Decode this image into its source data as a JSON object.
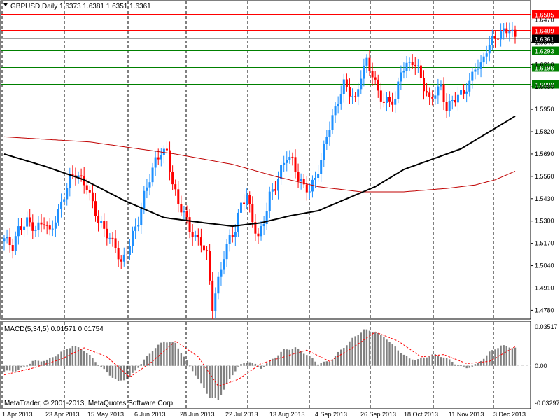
{
  "header": {
    "symbol_line": "GBPUSD,Daily  1.6373 1.6381 1.6351 1.6361",
    "macd_label": "MACD(5,34,5) 0.01571 0.01754",
    "copyright": "MetaTrader, © 2001-2013, MetaQuotes Software Corp."
  },
  "colors": {
    "bull": "#1e90ff",
    "bear": "#ff0000",
    "ma_fast": "#000000",
    "ma_slow": "#c00000",
    "resistance": "#ff0000",
    "support": "#008000",
    "macd_hist": "#808080",
    "macd_signal": "#ff0000"
  },
  "chart_data": [
    {
      "type": "candlestick",
      "title": "GBPUSD,Daily",
      "ylim": [
        1.4745,
        1.6545
      ],
      "y_ticks": [
        "1.6470",
        "1.6340",
        "1.6210",
        "1.6080",
        "1.5950",
        "1.5820",
        "1.5690",
        "1.5560",
        "1.5430",
        "1.5300",
        "1.5170",
        "1.5040",
        "1.4910",
        "1.4780"
      ],
      "x_labels": [
        "1 Apr 2013",
        "23 Apr 2013",
        "15 May 2013",
        "6 Jun 2013",
        "28 Jun 2013",
        "22 Jul 2013",
        "13 Aug 2013",
        "4 Sep 2013",
        "26 Sep 2013",
        "18 Oct 2013",
        "11 Nov 2013",
        "3 Dec 2013"
      ],
      "current_price": "1.6361",
      "levels": [
        {
          "value": 1.6505,
          "label": "1.6505",
          "kind": "resistance"
        },
        {
          "value": 1.6409,
          "label": "1.6409",
          "kind": "resistance"
        },
        {
          "value": 1.6293,
          "label": "1.6293",
          "kind": "support"
        },
        {
          "value": 1.6196,
          "label": "1.6196",
          "kind": "support"
        },
        {
          "value": 1.6098,
          "label": "1.6098",
          "kind": "support"
        }
      ],
      "close_path": [
        [
          0,
          1.52
        ],
        [
          3,
          1.515
        ],
        [
          5,
          1.525
        ],
        [
          8,
          1.53
        ],
        [
          11,
          1.525
        ],
        [
          14,
          1.53
        ],
        [
          16,
          1.523
        ],
        [
          19,
          1.535
        ],
        [
          21,
          1.545
        ],
        [
          23,
          1.555
        ],
        [
          25,
          1.558
        ],
        [
          27,
          1.554
        ],
        [
          29,
          1.55
        ],
        [
          31,
          1.54
        ],
        [
          33,
          1.53
        ],
        [
          35,
          1.525
        ],
        [
          37,
          1.52
        ],
        [
          39,
          1.515
        ],
        [
          41,
          1.505
        ],
        [
          43,
          1.512
        ],
        [
          45,
          1.522
        ],
        [
          47,
          1.53
        ],
        [
          49,
          1.545
        ],
        [
          51,
          1.555
        ],
        [
          53,
          1.565
        ],
        [
          55,
          1.57
        ],
        [
          57,
          1.57
        ],
        [
          59,
          1.552
        ],
        [
          61,
          1.54
        ],
        [
          63,
          1.535
        ],
        [
          65,
          1.525
        ],
        [
          67,
          1.52
        ],
        [
          69,
          1.518
        ],
        [
          71,
          1.51
        ],
        [
          73,
          1.48
        ],
        [
          75,
          1.495
        ],
        [
          77,
          1.51
        ],
        [
          79,
          1.52
        ],
        [
          81,
          1.525
        ],
        [
          83,
          1.54
        ],
        [
          85,
          1.545
        ],
        [
          87,
          1.53
        ],
        [
          89,
          1.52
        ],
        [
          91,
          1.53
        ],
        [
          93,
          1.545
        ],
        [
          95,
          1.55
        ],
        [
          97,
          1.56
        ],
        [
          99,
          1.568
        ],
        [
          101,
          1.565
        ],
        [
          103,
          1.555
        ],
        [
          105,
          1.55
        ],
        [
          107,
          1.548
        ],
        [
          109,
          1.555
        ],
        [
          111,
          1.565
        ],
        [
          113,
          1.58
        ],
        [
          115,
          1.59
        ],
        [
          117,
          1.6
        ],
        [
          119,
          1.61
        ],
        [
          121,
          1.605
        ],
        [
          123,
          1.6
        ],
        [
          125,
          1.615
        ],
        [
          127,
          1.623
        ],
        [
          129,
          1.615
        ],
        [
          131,
          1.605
        ],
        [
          133,
          1.599
        ],
        [
          135,
          1.6
        ],
        [
          137,
          1.6
        ],
        [
          139,
          1.618
        ],
        [
          141,
          1.62
        ],
        [
          143,
          1.623
        ],
        [
          145,
          1.618
        ],
        [
          147,
          1.608
        ],
        [
          149,
          1.6
        ],
        [
          151,
          1.605
        ],
        [
          153,
          1.608
        ],
        [
          155,
          1.595
        ],
        [
          157,
          1.6
        ],
        [
          159,
          1.603
        ],
        [
          161,
          1.605
        ],
        [
          163,
          1.61
        ],
        [
          165,
          1.62
        ],
        [
          167,
          1.62
        ],
        [
          169,
          1.63
        ],
        [
          171,
          1.635
        ],
        [
          173,
          1.638
        ],
        [
          175,
          1.64
        ],
        [
          177,
          1.642
        ],
        [
          179,
          1.6361
        ]
      ],
      "ma_fast_path": [
        [
          0,
          1.569
        ],
        [
          14,
          1.562
        ],
        [
          28,
          1.554
        ],
        [
          42,
          1.542
        ],
        [
          56,
          1.532
        ],
        [
          70,
          1.529
        ],
        [
          80,
          1.527
        ],
        [
          90,
          1.529
        ],
        [
          100,
          1.533
        ],
        [
          110,
          1.536
        ],
        [
          120,
          1.543
        ],
        [
          130,
          1.55
        ],
        [
          140,
          1.56
        ],
        [
          150,
          1.566
        ],
        [
          160,
          1.572
        ],
        [
          170,
          1.582
        ],
        [
          179,
          1.591
        ]
      ],
      "ma_slow_path": [
        [
          0,
          1.579
        ],
        [
          30,
          1.576
        ],
        [
          60,
          1.569
        ],
        [
          80,
          1.563
        ],
        [
          95,
          1.556
        ],
        [
          110,
          1.55
        ],
        [
          125,
          1.547
        ],
        [
          140,
          1.547
        ],
        [
          155,
          1.549
        ],
        [
          165,
          1.551
        ],
        [
          172,
          1.554
        ],
        [
          179,
          1.559
        ]
      ]
    },
    {
      "type": "bar",
      "title": "MACD(5,34,5)",
      "ylim": [
        -0.03297,
        0.03517
      ],
      "y_ticks": [
        "0.03517",
        "0.00",
        "-0.03297"
      ],
      "histogram_path": [
        [
          0,
          -0.005
        ],
        [
          5,
          -0.004
        ],
        [
          10,
          0.004
        ],
        [
          15,
          0.005
        ],
        [
          20,
          0.012
        ],
        [
          24,
          0.018
        ],
        [
          28,
          0.014
        ],
        [
          32,
          0.004
        ],
        [
          36,
          -0.006
        ],
        [
          40,
          -0.014
        ],
        [
          44,
          -0.01
        ],
        [
          48,
          0.002
        ],
        [
          52,
          0.014
        ],
        [
          56,
          0.022
        ],
        [
          60,
          0.02
        ],
        [
          64,
          0.004
        ],
        [
          68,
          -0.012
        ],
        [
          72,
          -0.028
        ],
        [
          75,
          -0.03
        ],
        [
          78,
          -0.016
        ],
        [
          82,
          0.0
        ],
        [
          86,
          0.004
        ],
        [
          90,
          -0.002
        ],
        [
          94,
          0.006
        ],
        [
          98,
          0.014
        ],
        [
          102,
          0.016
        ],
        [
          106,
          0.01
        ],
        [
          110,
          0.002
        ],
        [
          114,
          0.004
        ],
        [
          118,
          0.014
        ],
        [
          122,
          0.024
        ],
        [
          126,
          0.032
        ],
        [
          130,
          0.03
        ],
        [
          134,
          0.024
        ],
        [
          138,
          0.014
        ],
        [
          142,
          0.006
        ],
        [
          146,
          0.006
        ],
        [
          150,
          0.01
        ],
        [
          154,
          0.008
        ],
        [
          158,
          0.002
        ],
        [
          162,
          -0.002
        ],
        [
          166,
          0.002
        ],
        [
          170,
          0.012
        ],
        [
          174,
          0.018
        ],
        [
          179,
          0.016
        ]
      ],
      "signal_path": [
        [
          0,
          -0.008
        ],
        [
          10,
          -0.002
        ],
        [
          20,
          0.006
        ],
        [
          28,
          0.016
        ],
        [
          36,
          0.008
        ],
        [
          44,
          -0.01
        ],
        [
          52,
          0.004
        ],
        [
          60,
          0.022
        ],
        [
          68,
          0.008
        ],
        [
          75,
          -0.018
        ],
        [
          82,
          -0.012
        ],
        [
          90,
          0.002
        ],
        [
          98,
          0.008
        ],
        [
          106,
          0.014
        ],
        [
          114,
          0.004
        ],
        [
          122,
          0.016
        ],
        [
          130,
          0.03
        ],
        [
          138,
          0.022
        ],
        [
          146,
          0.008
        ],
        [
          154,
          0.01
        ],
        [
          162,
          0.002
        ],
        [
          170,
          0.004
        ],
        [
          179,
          0.017
        ]
      ]
    }
  ]
}
